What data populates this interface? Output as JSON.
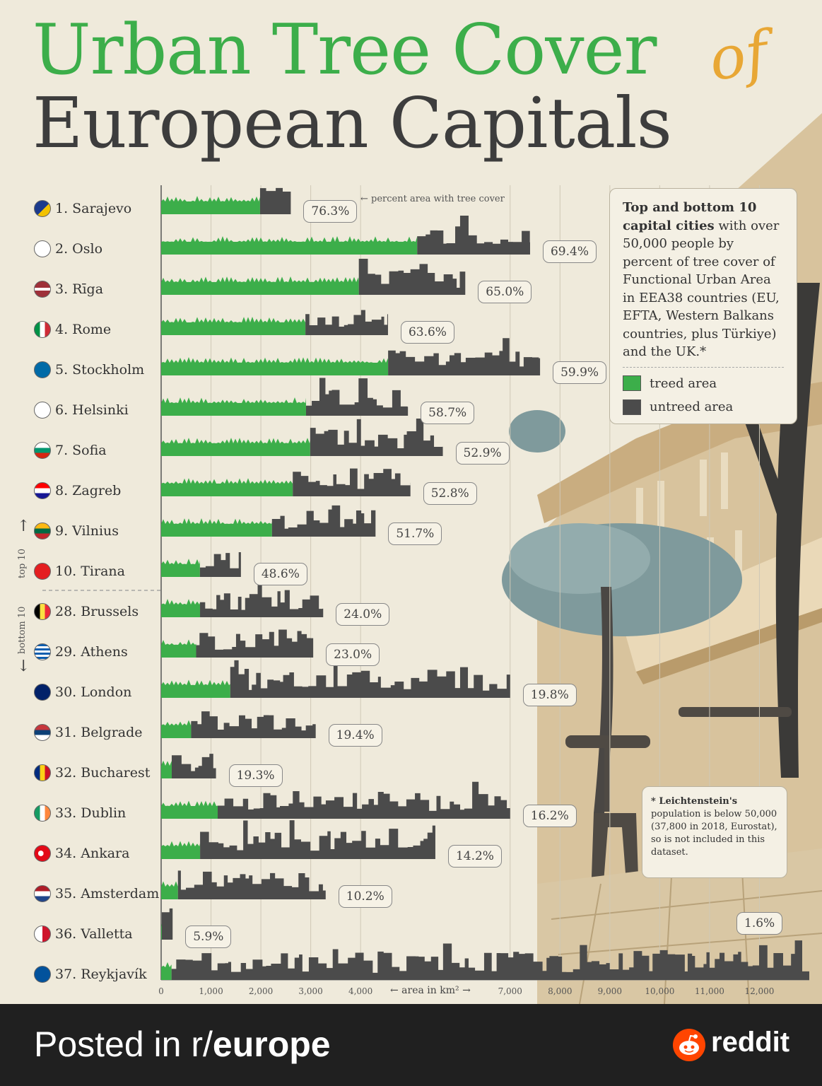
{
  "title": {
    "line1": "Urban Tree Cover",
    "of": "of",
    "line2": "European Capitals"
  },
  "annotation_percent": "percent area with tree cover",
  "chart_data": {
    "type": "bar",
    "title": "Urban Tree Cover of European Capitals",
    "xlabel": "← area in km² →",
    "xlim": [
      0,
      13000
    ],
    "x_ticks": [
      "0",
      "1,000",
      "2,000",
      "3,000",
      "4,000",
      "7,000",
      "8,000",
      "9,000",
      "10,000",
      "11,000",
      "12,000"
    ],
    "x_tick_values": [
      0,
      1000,
      2000,
      3000,
      4000,
      7000,
      8000,
      9000,
      10000,
      11000,
      12000
    ],
    "series": [
      {
        "name": "treed area",
        "color": "#3cae4a"
      },
      {
        "name": "untreed area",
        "color": "#4b4b4b"
      }
    ],
    "legend": "top-right",
    "side_labels": {
      "top": "top 10",
      "bottom": "bottom 10"
    },
    "rows": [
      {
        "label": "1. Sarajevo",
        "pct": "76.3%",
        "pct_value": 76.3,
        "area_km2": 2600,
        "flag": "bosnia"
      },
      {
        "label": "2. Oslo",
        "pct": "69.4%",
        "pct_value": 69.4,
        "area_km2": 7400,
        "flag": "norway"
      },
      {
        "label": "3. Rīga",
        "pct": "65.0%",
        "pct_value": 65.0,
        "area_km2": 6100,
        "flag": "latvia"
      },
      {
        "label": "4. Rome",
        "pct": "63.6%",
        "pct_value": 63.6,
        "area_km2": 4550,
        "flag": "italy"
      },
      {
        "label": "5. Stockholm",
        "pct": "59.9%",
        "pct_value": 59.9,
        "area_km2": 7600,
        "flag": "sweden"
      },
      {
        "label": "6. Helsinki",
        "pct": "58.7%",
        "pct_value": 58.7,
        "area_km2": 4950,
        "flag": "finland"
      },
      {
        "label": "7. Sofia",
        "pct": "52.9%",
        "pct_value": 52.9,
        "area_km2": 5650,
        "flag": "bulgaria"
      },
      {
        "label": "8. Zagreb",
        "pct": "52.8%",
        "pct_value": 52.8,
        "area_km2": 5000,
        "flag": "croatia"
      },
      {
        "label": "9. Vilnius",
        "pct": "51.7%",
        "pct_value": 51.7,
        "area_km2": 4300,
        "flag": "lithuania"
      },
      {
        "label": "10. Tirana",
        "pct": "48.6%",
        "pct_value": 48.6,
        "area_km2": 1600,
        "flag": "albania"
      },
      {
        "label": "28. Brussels",
        "pct": "24.0%",
        "pct_value": 24.0,
        "area_km2": 3250,
        "flag": "belgium"
      },
      {
        "label": "29. Athens",
        "pct": "23.0%",
        "pct_value": 23.0,
        "area_km2": 3050,
        "flag": "greece"
      },
      {
        "label": "30. London",
        "pct": "19.8%",
        "pct_value": 19.8,
        "area_km2": 7000,
        "flag": "uk"
      },
      {
        "label": "31. Belgrade",
        "pct": "19.4%",
        "pct_value": 19.4,
        "area_km2": 3100,
        "flag": "serbia"
      },
      {
        "label": "32. Bucharest",
        "pct": "19.3%",
        "pct_value": 19.3,
        "area_km2": 1100,
        "flag": "romania"
      },
      {
        "label": "33. Dublin",
        "pct": "16.2%",
        "pct_value": 16.2,
        "area_km2": 7000,
        "flag": "ireland"
      },
      {
        "label": "34. Ankara",
        "pct": "14.2%",
        "pct_value": 14.2,
        "area_km2": 5500,
        "flag": "turkey"
      },
      {
        "label": "35. Amsterdam",
        "pct": "10.2%",
        "pct_value": 10.2,
        "area_km2": 3300,
        "flag": "netherlands"
      },
      {
        "label": "36. Valletta",
        "pct": "5.9%",
        "pct_value": 5.9,
        "area_km2": 230,
        "flag": "malta"
      },
      {
        "label": "37. Reykjavík",
        "pct": "1.6%",
        "pct_value": 1.6,
        "area_km2": 13000,
        "flag": "iceland"
      }
    ]
  },
  "legend_box": {
    "desc_bold": "Top and bottom 10 capital cities",
    "desc_rest": " with over 50,000 people by percent of tree cover of Functional Urban Area in EEA38 countries (EU, EFTA, Western Balkans countries, plus Türkiye) and the UK.*",
    "items": [
      "treed area",
      "untreed area"
    ]
  },
  "footnote": {
    "bold": "* Leichtenstein's",
    "rest": " population is below 50,000 (37,800 in 2018, Eurostat), so is not included in this dataset."
  },
  "footer": {
    "prefix": "Posted in r/",
    "sub": "europe",
    "brand": "reddit"
  },
  "colors": {
    "treed": "#3cae4a",
    "untreed": "#4b4b4b",
    "title_green": "#3cae4a",
    "title_orange": "#e8a735",
    "background": "#efeadb"
  }
}
